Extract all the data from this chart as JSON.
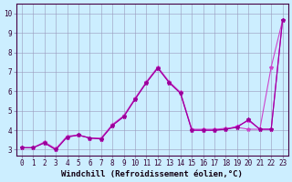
{
  "bg_color": "#cceeff",
  "grid_color": "#9999bb",
  "line_color1": "#cc44cc",
  "line_color2": "#990099",
  "line_color3": "#dd00dd",
  "xlabel": "Windchill (Refroidissement éolien,°C)",
  "xlim": [
    -0.5,
    23.5
  ],
  "ylim": [
    2.7,
    10.5
  ],
  "xticks": [
    0,
    1,
    2,
    3,
    4,
    5,
    6,
    7,
    8,
    9,
    10,
    11,
    12,
    13,
    14,
    15,
    16,
    17,
    18,
    19,
    20,
    21,
    22,
    23
  ],
  "yticks": [
    3,
    4,
    5,
    6,
    7,
    8,
    9,
    10
  ],
  "line1_x": [
    0,
    1,
    2,
    3,
    4,
    5,
    6,
    7,
    8,
    9,
    10,
    11,
    12,
    13,
    14,
    15,
    16,
    17,
    18,
    19,
    20,
    21,
    22,
    23
  ],
  "line1_y": [
    3.1,
    3.1,
    3.4,
    3.05,
    3.7,
    3.75,
    3.6,
    3.6,
    4.3,
    4.75,
    5.65,
    6.5,
    7.25,
    6.5,
    5.95,
    4.05,
    4.05,
    4.05,
    4.1,
    4.15,
    4.05,
    4.05,
    7.25,
    9.65
  ],
  "line2_x": [
    0,
    1,
    2,
    3,
    4,
    5,
    6,
    7,
    8,
    9,
    10,
    11,
    12,
    13,
    14,
    15,
    16,
    17,
    18,
    19,
    20,
    21,
    22,
    23
  ],
  "line2_y": [
    3.1,
    3.1,
    3.35,
    3.0,
    3.65,
    3.75,
    3.6,
    3.55,
    4.25,
    4.7,
    5.6,
    6.45,
    7.2,
    6.45,
    5.9,
    4.0,
    4.0,
    4.0,
    4.05,
    4.15,
    4.55,
    4.05,
    4.05,
    9.65
  ],
  "line3_x": [
    0,
    1,
    2,
    3,
    4,
    5,
    6,
    7,
    8,
    9,
    10,
    11,
    12,
    13,
    14,
    15,
    16,
    17,
    18,
    19,
    20,
    21,
    22,
    23
  ],
  "line3_y": [
    3.1,
    3.1,
    3.35,
    3.0,
    3.65,
    3.75,
    3.6,
    3.55,
    4.25,
    4.7,
    5.6,
    6.45,
    7.2,
    6.45,
    5.9,
    4.0,
    4.0,
    4.0,
    4.05,
    4.2,
    4.5,
    4.05,
    4.05,
    9.65
  ],
  "marker": "*",
  "marker_size": 3,
  "linewidth": 0.8,
  "xlabel_fontsize": 6.5,
  "tick_fontsize": 5.5
}
